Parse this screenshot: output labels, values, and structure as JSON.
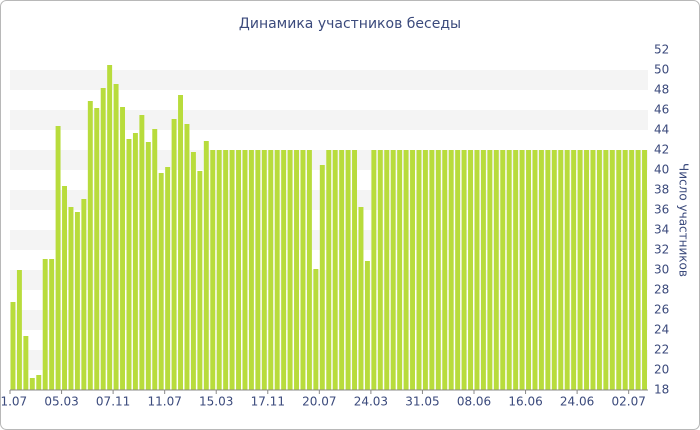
{
  "chart_data": {
    "type": "bar",
    "title": "Динамика участников беседы",
    "y_label": "Число участников",
    "categories": [
      "01.07",
      null,
      null,
      null,
      null,
      null,
      null,
      null,
      "05.03",
      null,
      null,
      null,
      null,
      null,
      null,
      null,
      "07.11",
      null,
      null,
      null,
      null,
      null,
      null,
      null,
      "11.07",
      null,
      null,
      null,
      null,
      null,
      null,
      null,
      "15.03",
      null,
      null,
      null,
      null,
      null,
      null,
      null,
      "17.11",
      null,
      null,
      null,
      null,
      null,
      null,
      null,
      "20.07",
      null,
      null,
      null,
      null,
      null,
      null,
      null,
      "24.03",
      null,
      null,
      null,
      null,
      null,
      null,
      null,
      "31.05",
      null,
      null,
      null,
      null,
      null,
      null,
      null,
      "08.06",
      null,
      null,
      null,
      null,
      null,
      null,
      null,
      "16.06",
      null,
      null,
      null,
      null,
      null,
      null,
      null,
      "24.06",
      null,
      null,
      null,
      null,
      null,
      null,
      null,
      "02.07",
      null,
      null
    ],
    "values": [
      26.8,
      30,
      23.4,
      19.2,
      19.5,
      31.1,
      31.1,
      44.4,
      38.4,
      36.3,
      35.8,
      37.1,
      46.9,
      46.2,
      48.2,
      50.5,
      48.6,
      46.3,
      43.1,
      43.7,
      45.5,
      42.8,
      44.1,
      39.7,
      40.3,
      45.1,
      47.5,
      44.6,
      41.8,
      39.9,
      42.9,
      42,
      42,
      42,
      42,
      42,
      42,
      42,
      42,
      42,
      42,
      42,
      42,
      42,
      42,
      42,
      42,
      30.1,
      40.5,
      42,
      42,
      42,
      42,
      42,
      36.3,
      30.9,
      42,
      42,
      42,
      42,
      42,
      42,
      42,
      42,
      42,
      42,
      42,
      42,
      42,
      42,
      42,
      42,
      42,
      42,
      42,
      42,
      42,
      42,
      42,
      42,
      42,
      42,
      42,
      42,
      42,
      42,
      42,
      42,
      42,
      42,
      42,
      42,
      42,
      42,
      42,
      42,
      42,
      42,
      42
    ],
    "color": "#b8dc3c",
    "ylim": [
      18,
      52
    ],
    "yticks": [
      18,
      20,
      22,
      24,
      26,
      28,
      30,
      32,
      34,
      36,
      38,
      40,
      42,
      44,
      46,
      48,
      50,
      52
    ],
    "grid": true
  }
}
